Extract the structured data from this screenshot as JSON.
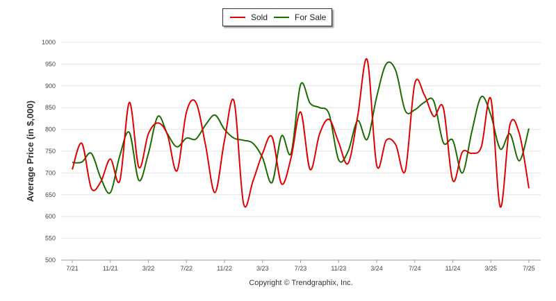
{
  "chart_data": {
    "type": "line",
    "ylabel": "Average Price (in $,000)",
    "ylim": [
      500,
      1000
    ],
    "yticks": [
      500,
      550,
      600,
      650,
      700,
      750,
      800,
      850,
      900,
      950,
      1000
    ],
    "xlabels": [
      "7/21",
      "11/21",
      "3/22",
      "7/22",
      "11/22",
      "3/23",
      "7/23",
      "11/23",
      "3/24",
      "7/24",
      "11/24",
      "3/25",
      "7/25"
    ],
    "x": [
      "7/21",
      "8/21",
      "9/21",
      "10/21",
      "11/21",
      "12/21",
      "1/22",
      "2/22",
      "3/22",
      "4/22",
      "5/22",
      "6/22",
      "7/22",
      "8/22",
      "9/22",
      "10/22",
      "11/22",
      "12/22",
      "1/23",
      "2/23",
      "3/23",
      "4/23",
      "5/23",
      "6/23",
      "7/23",
      "8/23",
      "9/23",
      "10/23",
      "11/23",
      "12/23",
      "1/24",
      "2/24",
      "3/24",
      "4/24",
      "5/24",
      "6/24",
      "7/24",
      "8/24",
      "9/24",
      "10/24",
      "11/24",
      "12/24",
      "1/25",
      "2/25",
      "3/25",
      "4/25",
      "5/25",
      "6/25",
      "7/25"
    ],
    "grid": true,
    "legend_position": "top-center",
    "series": [
      {
        "name": "Sold",
        "color": "#e00000",
        "values": [
          708,
          768,
          665,
          680,
          732,
          682,
          862,
          713,
          790,
          815,
          788,
          705,
          840,
          862,
          765,
          655,
          775,
          865,
          630,
          682,
          745,
          783,
          675,
          735,
          840,
          708,
          790,
          823,
          770,
          722,
          830,
          960,
          718,
          775,
          765,
          705,
          905,
          880,
          830,
          850,
          683,
          748,
          745,
          760,
          870,
          622,
          810,
          790,
          665
        ]
      },
      {
        "name": "For Sale",
        "color": "#1a6b00",
        "values": [
          724,
          725,
          745,
          688,
          655,
          740,
          793,
          683,
          745,
          830,
          790,
          760,
          780,
          778,
          810,
          833,
          800,
          780,
          775,
          768,
          735,
          678,
          785,
          745,
          903,
          860,
          850,
          835,
          730,
          750,
          820,
          777,
          875,
          950,
          935,
          843,
          845,
          862,
          865,
          770,
          775,
          700,
          795,
          875,
          833,
          755,
          790,
          728,
          802
        ]
      }
    ]
  },
  "legend": {
    "sold_label": "Sold",
    "for_sale_label": "For Sale"
  },
  "footer": {
    "copyright": "Copyright © Trendgraphix, Inc."
  }
}
